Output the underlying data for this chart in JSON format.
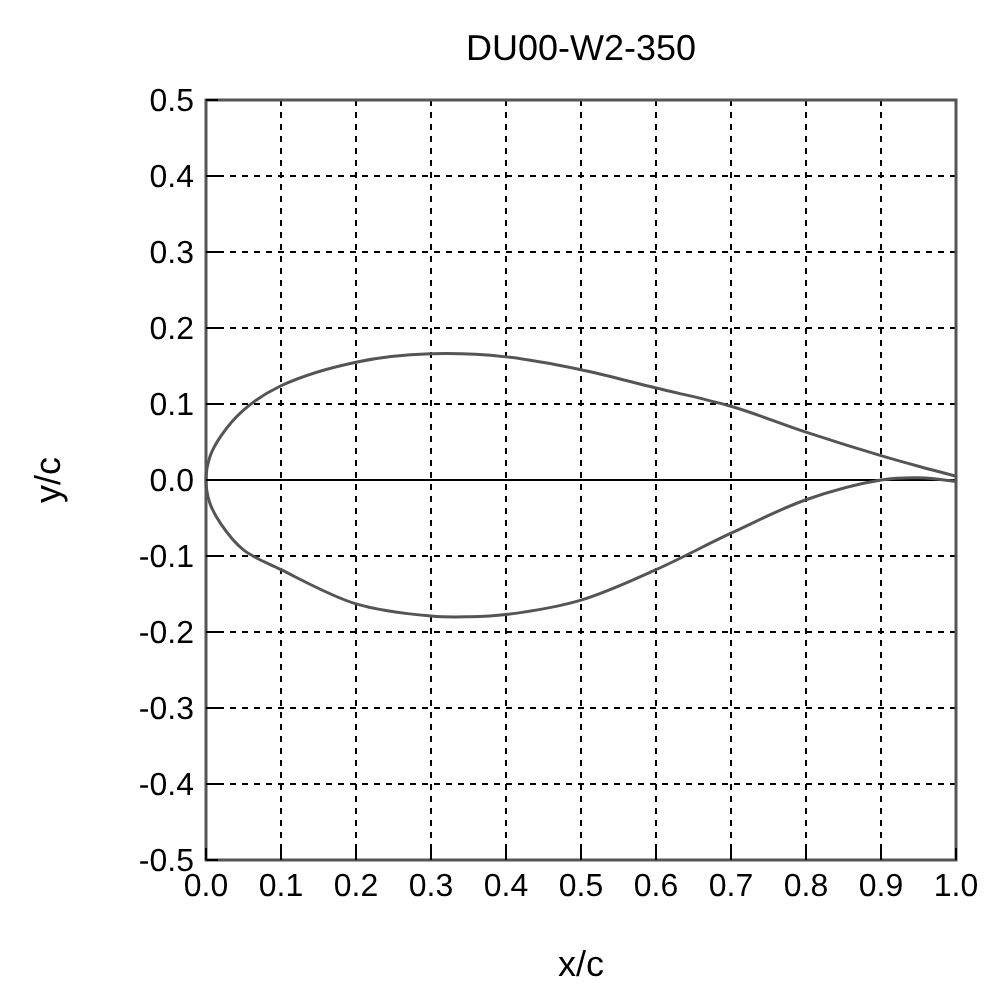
{
  "chart_data": {
    "type": "line",
    "title": "DU00-W2-350",
    "xlabel": "x/c",
    "ylabel": "y/c",
    "xlim": [
      0,
      1
    ],
    "ylim": [
      -0.5,
      0.5
    ],
    "xticks": [
      {
        "value": 0,
        "label": "0.0"
      },
      0.1,
      0.2,
      0.3,
      0.4,
      0.5,
      0.6,
      0.7,
      0.8,
      0.9,
      {
        "value": 1,
        "label": "1.0"
      }
    ],
    "yticks": [
      -0.5,
      -0.4,
      -0.3,
      -0.2,
      -0.1,
      {
        "value": 0,
        "label": "0.0"
      },
      0.1,
      0.2,
      0.3,
      0.4,
      0.5
    ],
    "grid": true,
    "marker": "none",
    "line_style": "solid",
    "ref_lines": [
      {
        "axis": "y",
        "value": 0,
        "color": "#000000"
      }
    ],
    "series": [
      {
        "color": "#555555",
        "x": [
          1.0,
          0.95,
          0.9,
          0.8,
          0.7,
          0.6,
          0.5,
          0.4,
          0.3,
          0.2,
          0.1,
          0.05,
          0.02,
          0.005,
          0.0,
          0.005,
          0.02,
          0.05,
          0.1,
          0.2,
          0.3,
          0.35,
          0.4,
          0.5,
          0.6,
          0.7,
          0.8,
          0.9,
          0.95,
          1.0
        ],
        "values": [
          0.005,
          0.018,
          0.032,
          0.063,
          0.097,
          0.121,
          0.145,
          0.162,
          0.166,
          0.155,
          0.124,
          0.092,
          0.058,
          0.03,
          0.0,
          -0.03,
          -0.058,
          -0.092,
          -0.118,
          -0.163,
          -0.179,
          -0.18,
          -0.177,
          -0.158,
          -0.118,
          -0.07,
          -0.026,
          0.0,
          0.003,
          -0.002
        ]
      }
    ]
  }
}
